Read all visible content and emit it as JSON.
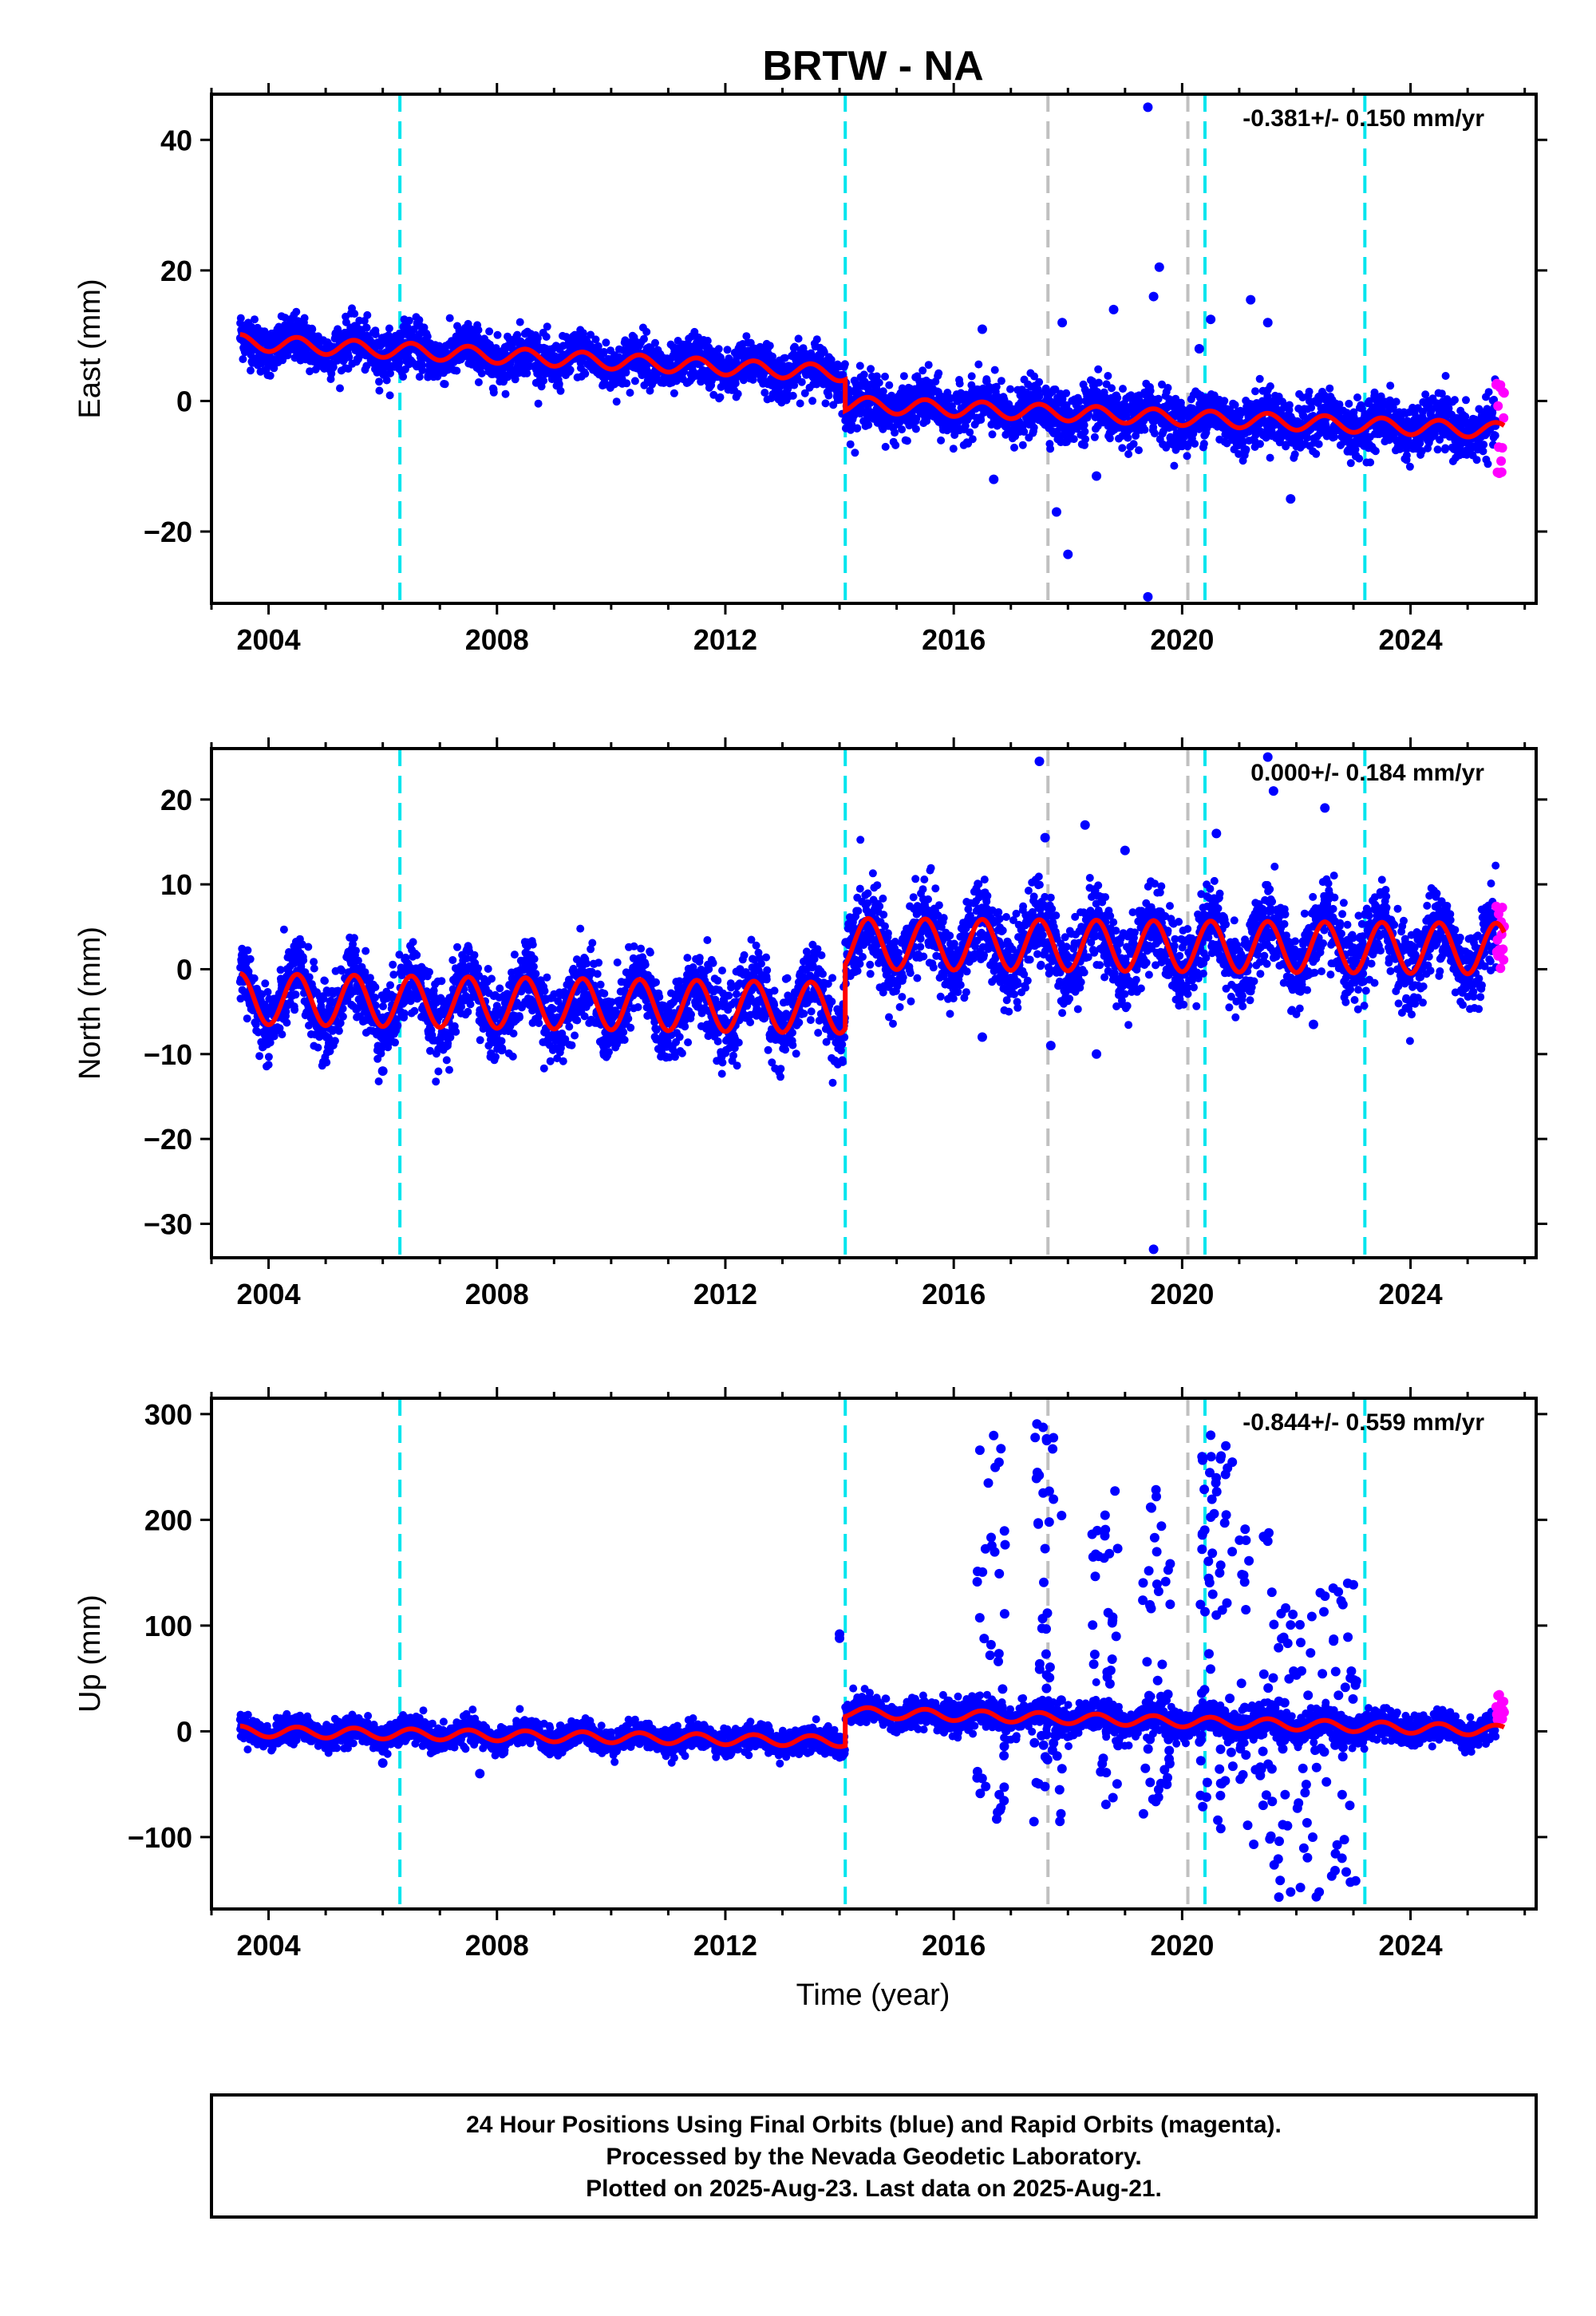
{
  "title": "BRTW - NA",
  "xlabel": "Time (year)",
  "colors": {
    "final": "#0000ff",
    "rapid": "#ff00ff",
    "model": "#ff0000",
    "event_cyan": "#00e5ee",
    "event_gray": "#c0c0c0"
  },
  "footer": {
    "line1": "24 Hour Positions Using Final Orbits (blue) and Rapid Orbits (magenta).",
    "line2": "Processed by the Nevada Geodetic Laboratory.",
    "line3": "Plotted on 2025-Aug-23. Last data on 2025-Aug-21."
  },
  "chart_data": [
    {
      "type": "scatter",
      "component": "East",
      "ylabel": "East (mm)",
      "rate_text": "-0.381+/- 0.150 mm/yr",
      "xlim": [
        2003.0,
        2026.2
      ],
      "ylim": [
        -31,
        47
      ],
      "xticks": [
        2004,
        2008,
        2012,
        2016,
        2020,
        2024
      ],
      "yticks": [
        -20,
        0,
        20,
        40
      ],
      "data_start": 2003.5,
      "data_end": 2025.64,
      "rapid_start": 2025.5,
      "events_cyan": [
        2006.3,
        2014.1,
        2020.4,
        2023.2
      ],
      "events_gray": [
        2017.65,
        2020.1
      ],
      "model_segments": [
        {
          "x": [
            2003.5,
            2014.1
          ],
          "y0": 9.0,
          "slope": -0.45,
          "amp": 1.2
        },
        {
          "x": [
            2014.1,
            2025.64
          ],
          "y0": -0.5,
          "slope": -0.35,
          "amp": 1.2
        }
      ],
      "scatter_spread": [
        {
          "x": [
            2003.5,
            2014.1
          ],
          "sigma": 1.8
        },
        {
          "x": [
            2014.1,
            2025.64
          ],
          "sigma": 2.0
        }
      ],
      "outliers": [
        [
          2019.4,
          45.0
        ],
        [
          2019.4,
          -30.0
        ],
        [
          2017.8,
          -17.0
        ],
        [
          2018.0,
          -23.5
        ],
        [
          2019.6,
          20.5
        ],
        [
          2021.2,
          15.5
        ],
        [
          2018.8,
          14.0
        ],
        [
          2016.5,
          11.0
        ],
        [
          2017.9,
          12.0
        ],
        [
          2019.5,
          16.0
        ],
        [
          2020.5,
          12.5
        ],
        [
          2021.5,
          12.0
        ],
        [
          2021.9,
          -15.0
        ],
        [
          2016.7,
          -12.0
        ],
        [
          2018.5,
          -11.5
        ],
        [
          2020.3,
          8.0
        ]
      ],
      "rapid_range": [
        -11.5,
        6.5
      ]
    },
    {
      "type": "scatter",
      "component": "North",
      "ylabel": "North (mm)",
      "rate_text": "0.000+/- 0.184 mm/yr",
      "xlim": [
        2003.0,
        2026.2
      ],
      "ylim": [
        -34,
        26
      ],
      "xticks": [
        2004,
        2008,
        2012,
        2016,
        2020,
        2024
      ],
      "yticks": [
        -30,
        -20,
        -10,
        0,
        10,
        20
      ],
      "data_start": 2003.5,
      "data_end": 2025.64,
      "rapid_start": 2025.5,
      "events_cyan": [
        2006.3,
        2014.1,
        2020.4,
        2023.2
      ],
      "events_gray": [
        2017.65,
        2020.1
      ],
      "model_segments": [
        {
          "x": [
            2003.5,
            2014.1
          ],
          "y0": -3.5,
          "slope": -0.1,
          "amp": 3.0
        },
        {
          "x": [
            2014.1,
            2025.64
          ],
          "y0": 3.0,
          "slope": -0.05,
          "amp": 3.0
        }
      ],
      "scatter_spread": [
        {
          "x": [
            2003.5,
            2014.1
          ],
          "sigma": 2.2
        },
        {
          "x": [
            2014.1,
            2025.64
          ],
          "sigma": 2.4
        }
      ],
      "outliers": [
        [
          2017.5,
          24.5
        ],
        [
          2021.5,
          25.0
        ],
        [
          2019.5,
          -33.0
        ],
        [
          2021.6,
          21.0
        ],
        [
          2022.5,
          19.0
        ],
        [
          2018.3,
          17.0
        ],
        [
          2017.6,
          15.5
        ],
        [
          2020.6,
          16.0
        ],
        [
          2019.0,
          14.0
        ],
        [
          2016.5,
          -8.0
        ],
        [
          2018.5,
          -10.0
        ],
        [
          2017.7,
          -9.0
        ],
        [
          2006.0,
          -12.0
        ],
        [
          2022.3,
          -6.5
        ]
      ],
      "rapid_range": [
        -1.5,
        7.5
      ]
    },
    {
      "type": "scatter",
      "component": "Up",
      "ylabel": "Up (mm)",
      "rate_text": "-0.844+/- 0.559 mm/yr",
      "xlim": [
        2003.0,
        2026.2
      ],
      "ylim": [
        -168,
        315
      ],
      "xticks": [
        2004,
        2008,
        2012,
        2016,
        2020,
        2024
      ],
      "yticks": [
        -100,
        0,
        100,
        200,
        300
      ],
      "data_start": 2003.5,
      "data_end": 2025.64,
      "rapid_start": 2025.5,
      "events_cyan": [
        2006.3,
        2014.1,
        2020.4,
        2023.2
      ],
      "events_gray": [
        2017.65,
        2020.1
      ],
      "model_segments": [
        {
          "x": [
            2003.5,
            2014.1
          ],
          "y0": 0.0,
          "slope": -0.9,
          "amp": 5.0
        },
        {
          "x": [
            2014.1,
            2025.64
          ],
          "y0": 18.0,
          "slope": -1.5,
          "amp": 5.0
        }
      ],
      "scatter_spread": [
        {
          "x": [
            2003.5,
            2014.1
          ],
          "sigma": 6.0
        },
        {
          "x": [
            2014.1,
            2025.64
          ],
          "sigma": 7.0
        }
      ],
      "outlier_bursts": [
        {
          "x": [
            2016.4,
            2016.9
          ],
          "y": [
            -100,
            300
          ],
          "n": 40
        },
        {
          "x": [
            2017.4,
            2017.9
          ],
          "y": [
            -90,
            305
          ],
          "n": 55
        },
        {
          "x": [
            2018.4,
            2018.9
          ],
          "y": [
            -75,
            230
          ],
          "n": 40
        },
        {
          "x": [
            2019.3,
            2019.8
          ],
          "y": [
            -90,
            240
          ],
          "n": 45
        },
        {
          "x": [
            2020.3,
            2020.9
          ],
          "y": [
            -95,
            280
          ],
          "n": 60
        },
        {
          "x": [
            2021.0,
            2021.6
          ],
          "y": [
            -110,
            200
          ],
          "n": 40
        },
        {
          "x": [
            2021.6,
            2022.4
          ],
          "y": [
            -160,
            120
          ],
          "n": 45
        },
        {
          "x": [
            2022.4,
            2023.1
          ],
          "y": [
            -150,
            140
          ],
          "n": 40
        }
      ],
      "outliers": [
        [
          2014.0,
          92.0
        ],
        [
          2014.0,
          88.0
        ],
        [
          2020.5,
          280.0
        ],
        [
          2021.9,
          -152.0
        ],
        [
          2022.4,
          -152.0
        ],
        [
          2022.8,
          -120.0
        ],
        [
          2022.9,
          140.0
        ],
        [
          2007.7,
          -40.0
        ],
        [
          2006.0,
          -30.0
        ]
      ],
      "rapid_range": [
        8.0,
        35.0
      ]
    }
  ]
}
